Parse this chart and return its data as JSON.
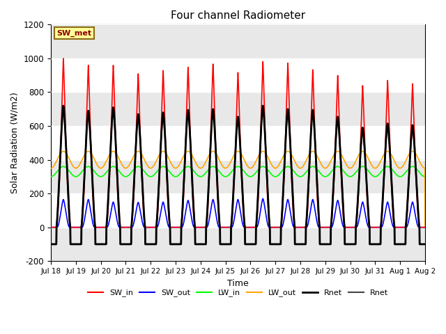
{
  "title": "Four channel Radiometer",
  "xlabel": "Time",
  "ylabel": "Solar Radiation (W/m2)",
  "ylim": [
    -200,
    1200
  ],
  "annotation": "SW_met",
  "annotation_color": "#8B0000",
  "annotation_bg": "#FFFF99",
  "annotation_border": "#8B6914",
  "x_tick_labels": [
    "Jul 18",
    "Jul 19",
    "Jul 20",
    "Jul 21",
    "Jul 22",
    "Jul 23",
    "Jul 24",
    "Jul 25",
    "Jul 26",
    "Jul 27",
    "Jul 28",
    "Jul 29",
    "Jul 30",
    "Jul 31",
    "Aug 1",
    "Aug 2"
  ],
  "num_days": 15,
  "SW_in_peaks": [
    1000,
    960,
    960,
    910,
    930,
    950,
    970,
    920,
    985,
    975,
    935,
    900,
    840,
    870,
    850
  ],
  "SW_out_peaks": [
    165,
    165,
    150,
    148,
    150,
    160,
    165,
    165,
    170,
    165,
    165,
    160,
    150,
    150,
    150
  ],
  "LW_in_base": 330,
  "LW_in_amplitude": 30,
  "LW_out_base": 400,
  "LW_out_amplitude": 50,
  "Rnet_peaks": [
    720,
    690,
    710,
    670,
    680,
    695,
    700,
    655,
    720,
    700,
    695,
    655,
    590,
    615,
    605
  ],
  "Rnet_night": -100,
  "points_per_day": 288
}
